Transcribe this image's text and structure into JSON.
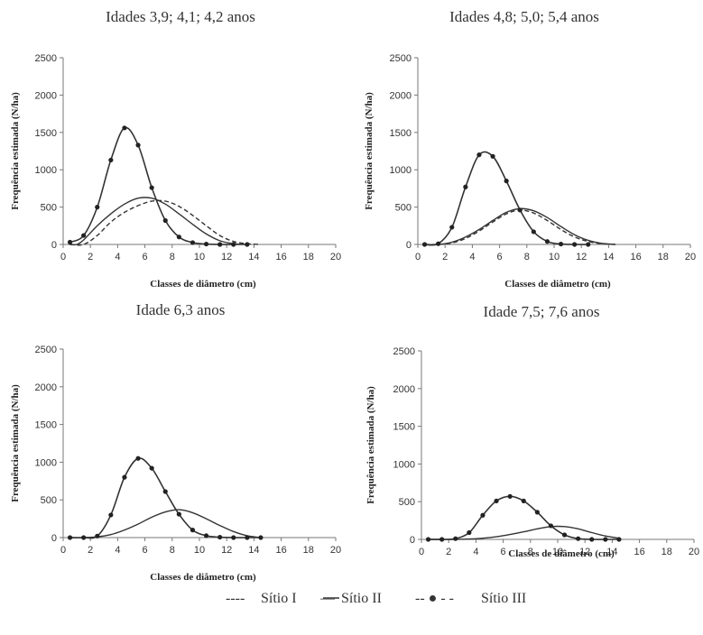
{
  "chart_data": [
    {
      "type": "line",
      "title": "Idades 3,9; 4,1; 4,2 anos",
      "xlabel": "Classes de diâmetro (cm)",
      "ylabel": "Frequência estimada (N/ha)",
      "xlim": [
        0,
        20
      ],
      "ylim": [
        0,
        2500
      ],
      "xticks": [
        "0",
        "2",
        "4",
        "6",
        "8",
        "10",
        "12",
        "14",
        "16",
        "18",
        "20"
      ],
      "yticks": [
        "0",
        "500",
        "1000",
        "1500",
        "2000",
        "2500"
      ],
      "series": [
        {
          "name": "Sítio I",
          "style": "dashed",
          "x": [
            0.5,
            1.5,
            2.5,
            3.5,
            4.5,
            5.5,
            6.5,
            7.5,
            8.5,
            9.5,
            10.5,
            11.5,
            12.5,
            13.5,
            14.5
          ],
          "y": [
            0,
            0,
            120,
            300,
            430,
            520,
            580,
            580,
            510,
            390,
            250,
            120,
            40,
            10,
            0
          ]
        },
        {
          "name": "Sítio II",
          "style": "solid",
          "x": [
            0.5,
            1,
            1.5,
            2.5,
            3.5,
            4.5,
            5.5,
            6.5,
            7.5,
            8.5,
            9.5,
            10.5,
            11.5,
            12.5,
            13.5
          ],
          "y": [
            0,
            0,
            60,
            250,
            410,
            540,
            620,
            620,
            540,
            410,
            270,
            140,
            50,
            10,
            0
          ]
        },
        {
          "name": "Sítio III",
          "style": "dashed-dots",
          "x": [
            0.5,
            1.5,
            2.5,
            3.5,
            4.5,
            5.5,
            6.5,
            7.5,
            8.5,
            9.5,
            10.5,
            11.5,
            12.5,
            13.5
          ],
          "y": [
            30,
            120,
            500,
            1130,
            1560,
            1330,
            760,
            320,
            100,
            25,
            5,
            0,
            0,
            0
          ]
        }
      ]
    },
    {
      "type": "line",
      "title": "Idades 4,8; 5,0; 5,4 anos",
      "xlabel": "Classes de diâmetro (cm)",
      "ylabel": "Frequência estimada (N/ha)",
      "xlim": [
        0,
        20
      ],
      "ylim": [
        0,
        2500
      ],
      "xticks": [
        "0",
        "2",
        "4",
        "6",
        "8",
        "10",
        "12",
        "14",
        "16",
        "18",
        "20"
      ],
      "yticks": [
        "0",
        "500",
        "1000",
        "1500",
        "2000",
        "2500"
      ],
      "series": [
        {
          "name": "Sítio I",
          "style": "dashed",
          "x": [
            0.5,
            1.5,
            2.5,
            3.5,
            4.5,
            5.5,
            6.5,
            7.5,
            8.5,
            9.5,
            10.5,
            11.5,
            12.5,
            13.5,
            14.5
          ],
          "y": [
            0,
            0,
            20,
            80,
            180,
            300,
            410,
            460,
            420,
            320,
            200,
            100,
            40,
            10,
            0
          ]
        },
        {
          "name": "Sítio II",
          "style": "solid",
          "x": [
            0.5,
            1.5,
            2.5,
            3.5,
            4.5,
            5.5,
            6.5,
            7.5,
            8.5,
            9.5,
            10.5,
            11.5,
            12.5,
            13.5,
            14.5
          ],
          "y": [
            0,
            0,
            30,
            100,
            200,
            320,
            430,
            480,
            450,
            360,
            240,
            130,
            55,
            15,
            0
          ]
        },
        {
          "name": "Sítio III",
          "style": "dashed-dots",
          "x": [
            0.5,
            1.5,
            2.5,
            3.5,
            4.5,
            5.5,
            6.5,
            7.5,
            8.5,
            9.5,
            10.5,
            11.5,
            12.5
          ],
          "y": [
            0,
            10,
            230,
            770,
            1200,
            1180,
            850,
            460,
            170,
            40,
            5,
            0,
            0
          ]
        }
      ]
    },
    {
      "type": "line",
      "title": "Idade 6,3 anos",
      "xlabel": "Classes de diâmetro (cm)",
      "ylabel": "Frequência estimada (N/ha)",
      "xlim": [
        0,
        20
      ],
      "ylim": [
        0,
        2500
      ],
      "xticks": [
        "0",
        "2",
        "4",
        "6",
        "8",
        "10",
        "12",
        "14",
        "16",
        "18",
        "20"
      ],
      "yticks": [
        "0",
        "500",
        "1000",
        "1500",
        "2000",
        "2500"
      ],
      "series": [
        {
          "name": "Sítio II",
          "style": "solid",
          "x": [
            0.5,
            1.5,
            2.5,
            3.5,
            4.5,
            5.5,
            6.5,
            7.5,
            8.5,
            9.5,
            10.5,
            11.5,
            12.5,
            13.5,
            14.5
          ],
          "y": [
            0,
            0,
            10,
            40,
            100,
            180,
            270,
            340,
            370,
            330,
            250,
            160,
            80,
            25,
            0
          ]
        },
        {
          "name": "Sítio III",
          "style": "dashed-dots",
          "x": [
            0.5,
            1.5,
            2.5,
            3.5,
            4.5,
            5.5,
            6.5,
            7.5,
            8.5,
            9.5,
            10.5,
            11.5,
            12.5,
            13.5,
            14.5
          ],
          "y": [
            0,
            0,
            20,
            300,
            800,
            1050,
            920,
            610,
            310,
            100,
            25,
            5,
            0,
            0,
            0
          ]
        }
      ]
    },
    {
      "type": "line",
      "title": "Idade 7,5; 7,6 anos",
      "xlabel": "Classes de diâmetro (cm)",
      "ylabel": "Frequência estimada (N/ha)",
      "xlim": [
        0,
        20
      ],
      "ylim": [
        0,
        2500
      ],
      "xticks": [
        "0",
        "2",
        "4",
        "6",
        "8",
        "10",
        "12",
        "14",
        "16",
        "18",
        "20"
      ],
      "yticks": [
        "0",
        "500",
        "1000",
        "1500",
        "2000",
        "2500"
      ],
      "series": [
        {
          "name": "Sítio II",
          "style": "solid",
          "x": [
            0.5,
            1.5,
            2.5,
            3.5,
            4.5,
            5.5,
            6.5,
            7.5,
            8.5,
            9.5,
            10.5,
            11.5,
            12.5,
            13.5,
            14.5
          ],
          "y": [
            0,
            0,
            0,
            5,
            15,
            35,
            65,
            100,
            140,
            170,
            170,
            140,
            90,
            45,
            15
          ]
        },
        {
          "name": "Sítio III",
          "style": "dashed-dots",
          "x": [
            0.5,
            1.5,
            2.5,
            3.5,
            4.5,
            5.5,
            6.5,
            7.5,
            8.5,
            9.5,
            10.5,
            11.5,
            12.5,
            13.5,
            14.5
          ],
          "y": [
            0,
            0,
            10,
            90,
            320,
            510,
            570,
            510,
            360,
            180,
            60,
            10,
            0,
            0,
            0
          ]
        }
      ]
    }
  ],
  "legend": [
    {
      "symbol": "----",
      "label": "Sítio I"
    },
    {
      "symbol": "—",
      "label": "Sítio II"
    },
    {
      "symbol": "-- ● - -",
      "label": "Sítio III"
    }
  ]
}
